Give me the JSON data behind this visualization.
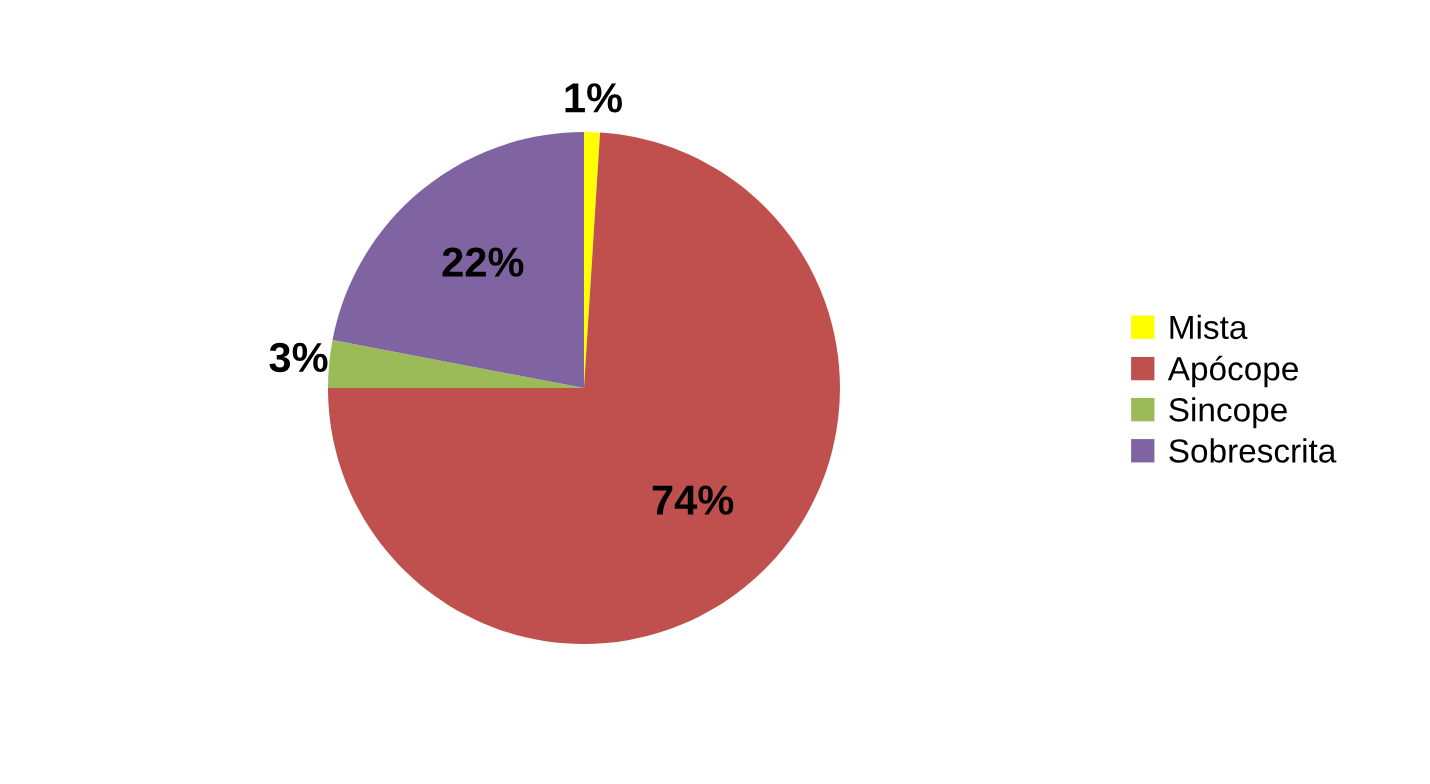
{
  "chart_data": {
    "type": "pie",
    "categories": [
      "Mista",
      "Apócope",
      "Sincope",
      "Sobrescrita"
    ],
    "values": [
      1,
      74,
      3,
      22
    ],
    "colors": [
      "#ffff00",
      "#c0504d",
      "#9bbb59",
      "#8064a2"
    ],
    "value_labels": [
      "1%",
      "74%",
      "3%",
      "22%"
    ],
    "legend": "right"
  }
}
